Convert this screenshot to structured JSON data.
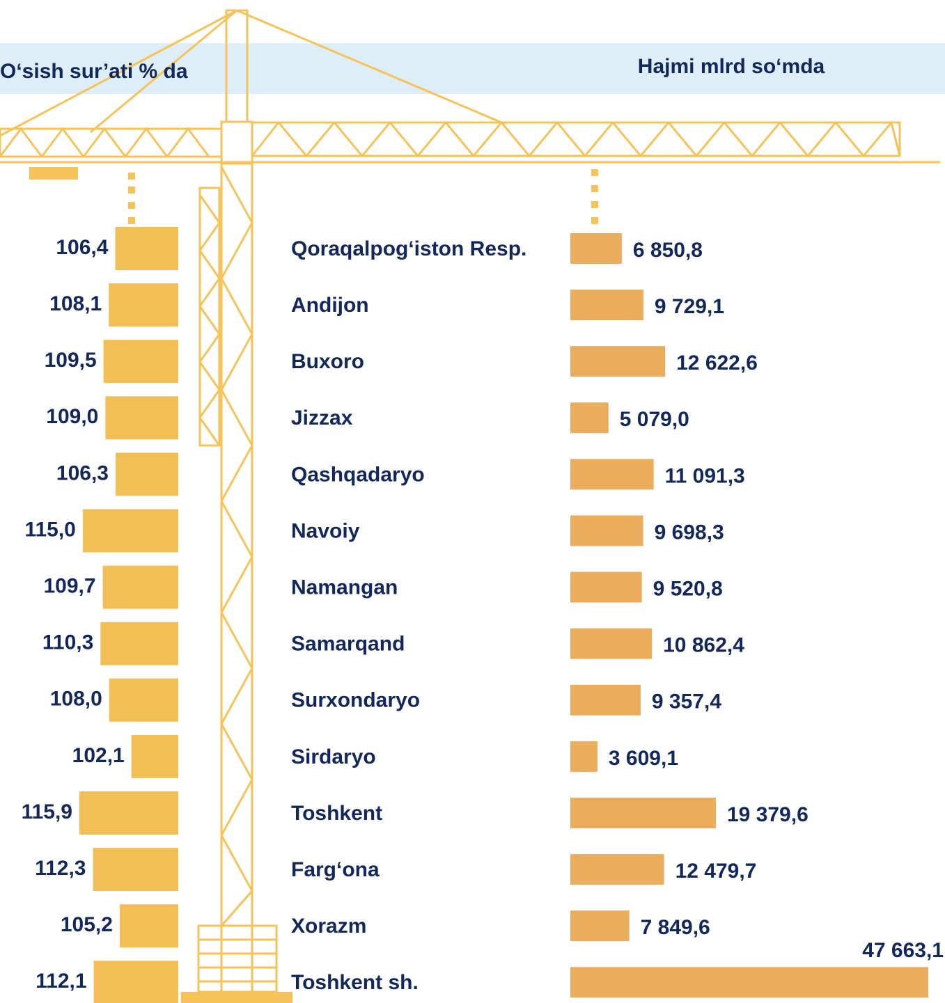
{
  "chart_data": {
    "type": "bar",
    "orientation": "horizontal",
    "categories": [
      "Qoraqalpog‘iston Resp.",
      "Andijon",
      "Buxoro",
      "Jizzax",
      "Qashqadaryo",
      "Navoiy",
      "Namangan",
      "Samarqand",
      "Surxondaryo",
      "Sirdaryo",
      "Toshkent",
      "Farg‘ona",
      "Xorazm",
      "Toshkent sh."
    ],
    "series": [
      {
        "name": "O‘sish sur’ati % da",
        "color": "#f2bf57",
        "values": [
          106.4,
          108.1,
          109.5,
          109.0,
          106.3,
          115.0,
          109.7,
          110.3,
          108.0,
          102.1,
          115.9,
          112.3,
          105.2,
          112.1
        ],
        "value_labels": [
          "106,4",
          "108,1",
          "109,5",
          "109,0",
          "106,3",
          "115,0",
          "109,7",
          "110,3",
          "108,0",
          "102,1",
          "115,9",
          "112,3",
          "105,2",
          "112,1"
        ]
      },
      {
        "name": "Hajmi mlrd so‘mda",
        "color": "#eaad5e",
        "values": [
          6850.8,
          9729.1,
          12622.6,
          5079.0,
          11091.3,
          9698.3,
          9520.8,
          10862.4,
          9357.4,
          3609.1,
          19379.6,
          12479.7,
          7849.6,
          47663.1
        ],
        "value_labels": [
          "6 850,8",
          "9 729,1",
          "12 622,6",
          "5 079,0",
          "11 091,3",
          "9 698,3",
          "9 520,8",
          "10 862,4",
          "9 357,4",
          "3 609,1",
          "19 379,6",
          "12 479,7",
          "7 849,6",
          "47 663,1"
        ]
      }
    ]
  }
}
